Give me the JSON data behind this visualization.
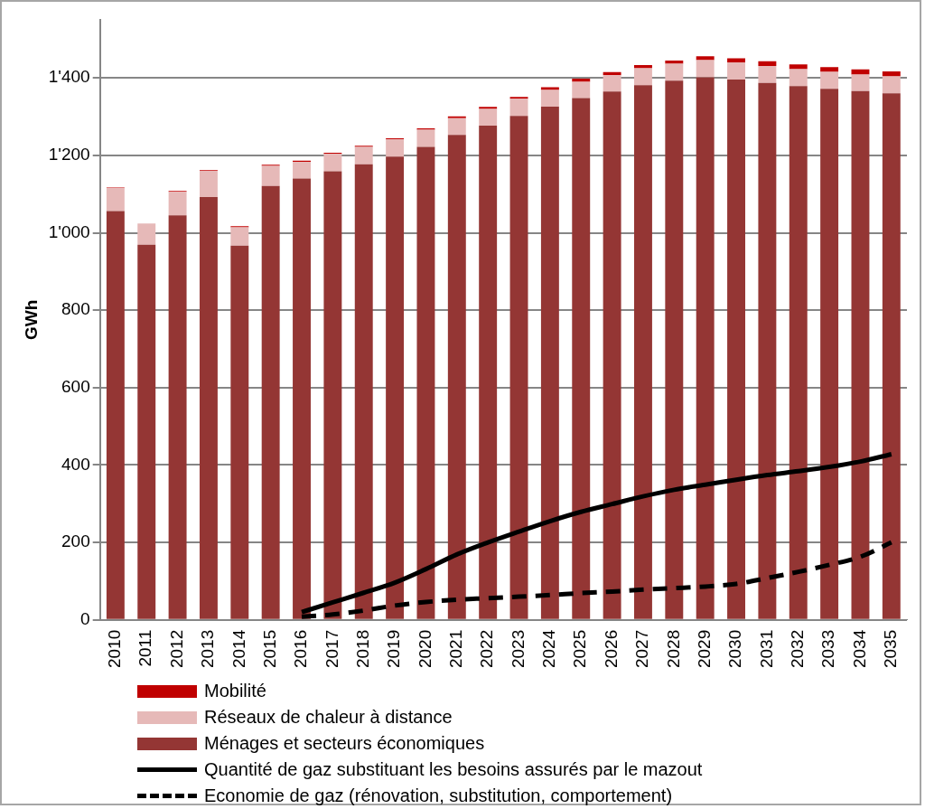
{
  "chart_data": {
    "type": "bar",
    "stacked": true,
    "ylabel": "GWh",
    "legend": "bottom",
    "grid": "y",
    "categories": [
      "2010",
      "2011",
      "2012",
      "2013",
      "2014",
      "2015",
      "2016",
      "2017",
      "2018",
      "2019",
      "2020",
      "2021",
      "2022",
      "2023",
      "2024",
      "2025",
      "2026",
      "2027",
      "2028",
      "2029",
      "2030",
      "2031",
      "2032",
      "2033",
      "2034",
      "2035"
    ],
    "ylim": [
      0,
      1550
    ],
    "yticks": [
      0,
      200,
      400,
      600,
      800,
      {
        "value": 1000,
        "label": "1'000"
      },
      {
        "value": 1200,
        "label": "1'200"
      },
      {
        "value": 1400,
        "label": "1'400"
      }
    ],
    "series": [
      {
        "name": "Ménages et secteurs économiques",
        "color": "#943634",
        "values": [
          1056,
          969,
          1045,
          1092,
          967,
          1121,
          1140,
          1159,
          1177,
          1197,
          1222,
          1253,
          1277,
          1302,
          1326,
          1348,
          1365,
          1381,
          1393,
          1402,
          1396,
          1387,
          1379,
          1372,
          1366,
          1360
        ]
      },
      {
        "name": "Réseaux de chaleur à distance",
        "color": "#e6b9b8",
        "values": [
          59,
          55,
          61,
          68,
          47,
          52,
          43,
          45,
          45,
          44,
          44,
          43,
          43,
          44,
          43,
          42,
          42,
          44,
          44,
          44,
          44,
          44,
          44,
          44,
          43,
          44
        ]
      },
      {
        "name": "Mobilité",
        "color": "#c00000",
        "values": [
          2,
          null,
          2,
          2,
          3,
          3,
          3,
          3,
          3,
          3,
          4,
          5,
          5,
          5,
          7,
          8,
          8,
          8,
          8,
          10,
          11,
          12,
          12,
          12,
          13,
          13
        ]
      },
      {
        "name": "Quantité de gaz substituant les besoins assurés par le mazout",
        "type": "line",
        "color": "#000000",
        "line_style": "solid",
        "marker": "none",
        "values": [
          null,
          null,
          null,
          null,
          null,
          null,
          20,
          45,
          70,
          96,
          131,
          169,
          200,
          228,
          255,
          279,
          299,
          319,
          336,
          349,
          362,
          374,
          384,
          395,
          409,
          428
        ]
      },
      {
        "name": "Economie de gaz (rénovation, substitution, comportement)",
        "type": "line",
        "color": "#000000",
        "line_style": "dashed",
        "marker": "none",
        "values": [
          null,
          null,
          null,
          null,
          null,
          null,
          8,
          14,
          24,
          37,
          46,
          52,
          56,
          60,
          64,
          69,
          73,
          78,
          82,
          86,
          93,
          108,
          124,
          142,
          163,
          200
        ]
      }
    ]
  }
}
